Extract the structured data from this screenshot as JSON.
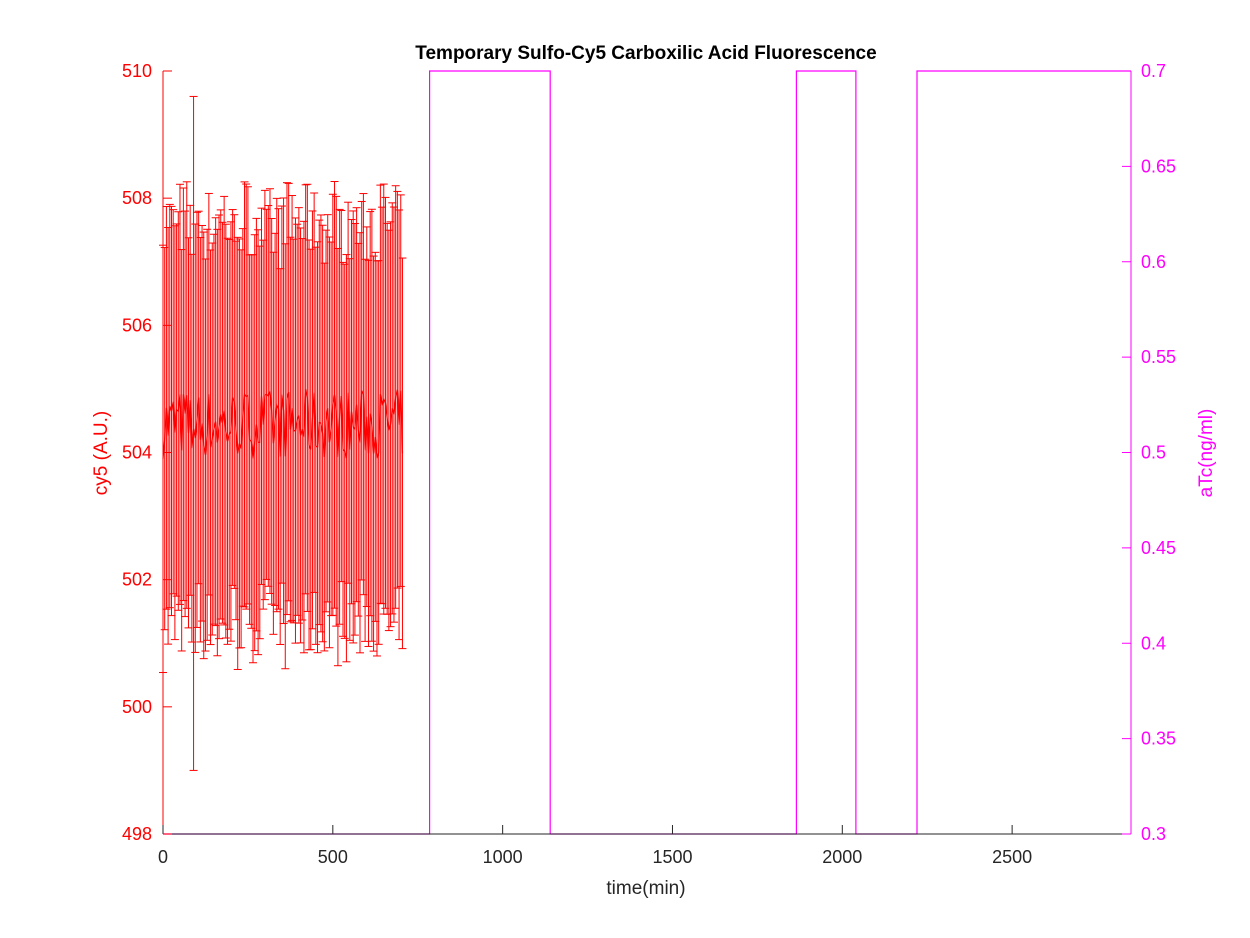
{
  "chart_data": {
    "type": "line",
    "title": "Temporary Sulfo-Cy5 Carboxilic Acid Fluorescence",
    "xlabel": "time(min)",
    "xlim": [
      0,
      2850
    ],
    "x_ticks": [
      0,
      500,
      1000,
      1500,
      2000,
      2500
    ],
    "x_tick_labels": [
      "0",
      "500",
      "1000",
      "1500",
      "2000",
      "2500"
    ],
    "left_axis": {
      "label": "cy5 (A.U.)",
      "color": "#ff0000",
      "ylim": [
        498,
        510
      ],
      "ticks": [
        498,
        500,
        502,
        504,
        506,
        508,
        510
      ],
      "tick_labels": [
        "498",
        "500",
        "502",
        "504",
        "506",
        "508",
        "510"
      ]
    },
    "right_axis": {
      "label": "aTc(ng/ml)",
      "color": "#ff00ff",
      "ylim": [
        0.3,
        0.7
      ],
      "ticks": [
        0.3,
        0.35,
        0.4,
        0.45,
        0.5,
        0.55,
        0.6,
        0.65,
        0.7
      ],
      "tick_labels": [
        "0.3",
        "0.35",
        "0.4",
        "0.45",
        "0.5",
        "0.55",
        "0.6",
        "0.65",
        "0.7"
      ]
    },
    "series": [
      {
        "axis": "left",
        "style": "errorbar",
        "color": "#ff0000",
        "x_start": 0,
        "x_step": 5,
        "x_end": 705,
        "mean_range": [
          503.9,
          505.0
        ],
        "error_half_width_range": [
          2.9,
          3.4
        ],
        "outlier": {
          "x": 90,
          "low": 499.0,
          "high": 509.6
        }
      },
      {
        "axis": "right",
        "style": "step",
        "color": "#ff00ff",
        "points": [
          [
            0,
            0.3
          ],
          [
            785,
            0.3
          ],
          [
            785,
            0.7
          ],
          [
            1140,
            0.7
          ],
          [
            1140,
            0.3
          ],
          [
            1865,
            0.3
          ],
          [
            1865,
            0.7
          ],
          [
            2040,
            0.7
          ],
          [
            2040,
            0.3
          ],
          [
            2220,
            0.3
          ],
          [
            2220,
            0.7
          ],
          [
            2850,
            0.7
          ]
        ]
      }
    ],
    "grid": false,
    "legend": "none"
  }
}
